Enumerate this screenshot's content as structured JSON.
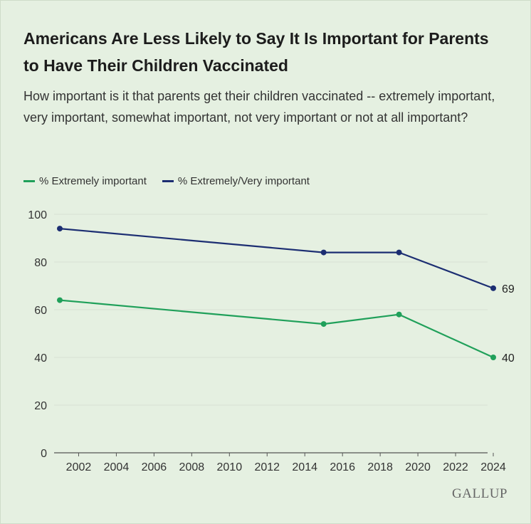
{
  "title": "Americans Are Less Likely to Say It Is Important for Parents to Have Their Children Vaccinated",
  "subtitle": "How important is it that parents get their children vaccinated -- extremely important, very important, somewhat important, not very important or not at all important?",
  "brand": "GALLUP",
  "colors": {
    "background": "#e5f0e1",
    "grid": "#d6e1d2",
    "axis": "#555555",
    "text": "#333333"
  },
  "chart_data": {
    "type": "line",
    "title": "",
    "xlabel": "",
    "ylabel": "",
    "xlim": [
      2001,
      2024
    ],
    "ylim": [
      0,
      100
    ],
    "x_ticks": [
      2002,
      2004,
      2006,
      2008,
      2010,
      2012,
      2014,
      2016,
      2018,
      2020,
      2022,
      2024
    ],
    "y_ticks": [
      0,
      20,
      40,
      60,
      80,
      100
    ],
    "grid": true,
    "legend_position": "top-left",
    "series": [
      {
        "name": "% Extremely important",
        "color": "#20a05a",
        "x": [
          2001,
          2015,
          2019,
          2024
        ],
        "values": [
          64,
          54,
          58,
          40
        ],
        "end_label": "40"
      },
      {
        "name": "% Extremely/Very important",
        "color": "#1c2e72",
        "x": [
          2001,
          2015,
          2019,
          2024
        ],
        "values": [
          94,
          84,
          84,
          69
        ],
        "end_label": "69"
      }
    ]
  }
}
